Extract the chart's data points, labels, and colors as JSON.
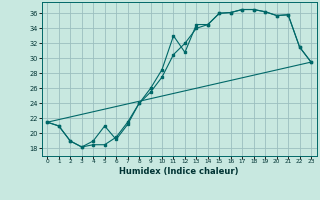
{
  "xlabel": "Humidex (Indice chaleur)",
  "background_color": "#c8e8e0",
  "grid_color": "#9bbfbf",
  "line_color": "#006868",
  "xlim": [
    -0.5,
    23.5
  ],
  "ylim": [
    17.0,
    37.5
  ],
  "yticks": [
    18,
    20,
    22,
    24,
    26,
    28,
    30,
    32,
    34,
    36
  ],
  "xtick_labels": [
    "0",
    "1",
    "2",
    "3",
    "4",
    "5",
    "6",
    "7",
    "8",
    "9",
    "10",
    "11",
    "12",
    "13",
    "14",
    "15",
    "16",
    "17",
    "18",
    "19",
    "20",
    "21",
    "22",
    "23"
  ],
  "xtick_positions": [
    0,
    1,
    2,
    3,
    4,
    5,
    6,
    7,
    8,
    9,
    10,
    11,
    12,
    13,
    14,
    15,
    16,
    17,
    18,
    19,
    20,
    21,
    22,
    23
  ],
  "line1_x": [
    0,
    1,
    2,
    3,
    4,
    5,
    6,
    7,
    8,
    9,
    10,
    11,
    12,
    13,
    14,
    15,
    16,
    17,
    18,
    19,
    20,
    21,
    22,
    23
  ],
  "line1_y": [
    21.5,
    21.0,
    19.0,
    18.2,
    19.0,
    21.0,
    19.2,
    21.2,
    24.0,
    26.0,
    28.5,
    33.0,
    30.8,
    34.5,
    34.5,
    36.0,
    36.1,
    36.5,
    36.5,
    36.2,
    35.7,
    35.8,
    31.5,
    29.5
  ],
  "line2_x": [
    0,
    1,
    2,
    3,
    4,
    5,
    6,
    7,
    8,
    9,
    10,
    11,
    12,
    13,
    14,
    15,
    16,
    17,
    18,
    19,
    20,
    21,
    22,
    23
  ],
  "line2_y": [
    21.5,
    21.0,
    19.0,
    18.2,
    18.5,
    18.5,
    19.5,
    21.5,
    24.0,
    25.5,
    27.5,
    30.5,
    32.0,
    34.0,
    34.5,
    36.0,
    36.1,
    36.5,
    36.5,
    36.2,
    35.7,
    35.8,
    31.5,
    29.5
  ],
  "line3_x": [
    0,
    23
  ],
  "line3_y": [
    21.5,
    29.5
  ]
}
